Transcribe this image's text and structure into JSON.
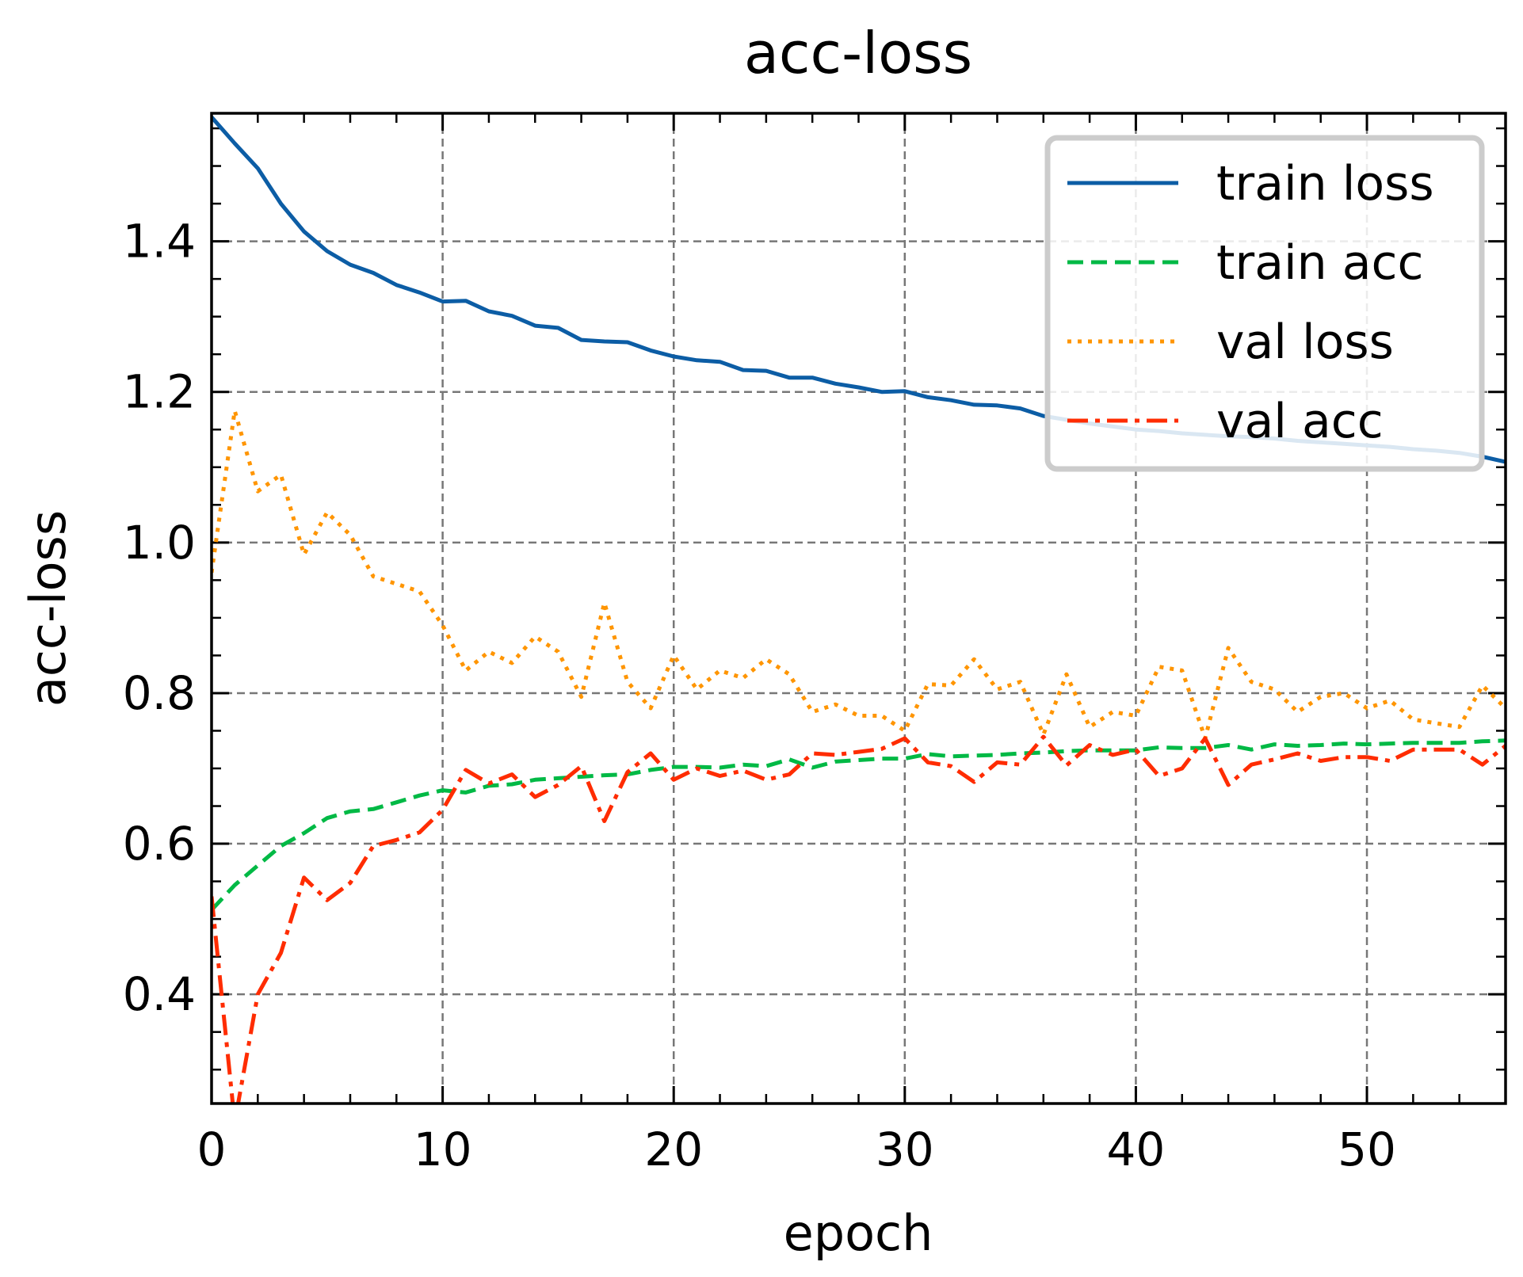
{
  "chart_data": {
    "type": "line",
    "title": "acc-loss",
    "xlabel": "epoch",
    "ylabel": "acc-loss",
    "xlim": [
      0,
      56
    ],
    "ylim": [
      0.255,
      1.57
    ],
    "xticks": [
      0,
      10,
      20,
      30,
      40,
      50
    ],
    "yticks": [
      0.4,
      0.6,
      0.8,
      1.0,
      1.2,
      1.4
    ],
    "xtick_labels": [
      "0",
      "10",
      "20",
      "30",
      "40",
      "50"
    ],
    "ytick_labels": [
      "0.4",
      "0.6",
      "0.8",
      "1.0",
      "1.2",
      "1.4"
    ],
    "grid": true,
    "legend_position": "top-right",
    "x": [
      0,
      1,
      2,
      3,
      4,
      5,
      6,
      7,
      8,
      9,
      10,
      11,
      12,
      13,
      14,
      15,
      16,
      17,
      18,
      19,
      20,
      21,
      22,
      23,
      24,
      25,
      26,
      27,
      28,
      29,
      30,
      31,
      32,
      33,
      34,
      35,
      36,
      37,
      38,
      39,
      40,
      41,
      42,
      43,
      44,
      45,
      46,
      47,
      48,
      49,
      50,
      51,
      52,
      53,
      54,
      55,
      56
    ],
    "series": [
      {
        "name": "train loss",
        "color": "#0C5DA5",
        "style": "solid",
        "values": [
          1.565,
          1.53,
          1.497,
          1.45,
          1.413,
          1.387,
          1.369,
          1.358,
          1.342,
          1.332,
          1.32,
          1.321,
          1.307,
          1.301,
          1.288,
          1.285,
          1.269,
          1.267,
          1.266,
          1.255,
          1.247,
          1.242,
          1.24,
          1.229,
          1.228,
          1.219,
          1.219,
          1.211,
          1.206,
          1.2,
          1.201,
          1.193,
          1.189,
          1.183,
          1.182,
          1.178,
          1.168,
          1.163,
          1.158,
          1.154,
          1.15,
          1.148,
          1.145,
          1.143,
          1.141,
          1.14,
          1.138,
          1.135,
          1.133,
          1.131,
          1.129,
          1.127,
          1.124,
          1.122,
          1.119,
          1.114,
          1.107
        ]
      },
      {
        "name": "train acc",
        "color": "#00B945",
        "style": "dashed",
        "values": [
          0.512,
          0.545,
          0.571,
          0.597,
          0.614,
          0.634,
          0.643,
          0.646,
          0.655,
          0.664,
          0.671,
          0.668,
          0.677,
          0.679,
          0.685,
          0.687,
          0.689,
          0.691,
          0.692,
          0.698,
          0.702,
          0.702,
          0.701,
          0.705,
          0.703,
          0.712,
          0.701,
          0.709,
          0.711,
          0.713,
          0.713,
          0.719,
          0.716,
          0.717,
          0.718,
          0.72,
          0.721,
          0.723,
          0.724,
          0.724,
          0.724,
          0.728,
          0.727,
          0.727,
          0.731,
          0.725,
          0.732,
          0.73,
          0.731,
          0.733,
          0.732,
          0.733,
          0.734,
          0.734,
          0.734,
          0.736,
          0.737
        ]
      },
      {
        "name": "val loss",
        "color": "#FF9500",
        "style": "dotted",
        "values": [
          0.96,
          1.175,
          1.068,
          1.09,
          0.984,
          1.04,
          1.01,
          0.955,
          0.945,
          0.935,
          0.89,
          0.83,
          0.855,
          0.84,
          0.875,
          0.855,
          0.795,
          0.92,
          0.815,
          0.78,
          0.85,
          0.805,
          0.83,
          0.82,
          0.845,
          0.825,
          0.775,
          0.785,
          0.77,
          0.77,
          0.75,
          0.812,
          0.81,
          0.845,
          0.805,
          0.815,
          0.745,
          0.825,
          0.755,
          0.775,
          0.77,
          0.835,
          0.83,
          0.74,
          0.86,
          0.815,
          0.805,
          0.775,
          0.795,
          0.8,
          0.78,
          0.79,
          0.765,
          0.76,
          0.755,
          0.81,
          0.78
        ]
      },
      {
        "name": "val acc",
        "color": "#FF2C00",
        "style": "dashdot",
        "values": [
          0.53,
          0.23,
          0.4,
          0.455,
          0.555,
          0.525,
          0.548,
          0.597,
          0.605,
          0.615,
          0.645,
          0.698,
          0.68,
          0.692,
          0.662,
          0.678,
          0.703,
          0.63,
          0.695,
          0.72,
          0.685,
          0.7,
          0.69,
          0.697,
          0.685,
          0.692,
          0.72,
          0.718,
          0.722,
          0.726,
          0.74,
          0.708,
          0.703,
          0.682,
          0.708,
          0.705,
          0.742,
          0.704,
          0.731,
          0.718,
          0.725,
          0.69,
          0.7,
          0.74,
          0.678,
          0.705,
          0.712,
          0.72,
          0.71,
          0.715,
          0.715,
          0.71,
          0.725,
          0.725,
          0.725,
          0.705,
          0.73
        ]
      }
    ]
  }
}
